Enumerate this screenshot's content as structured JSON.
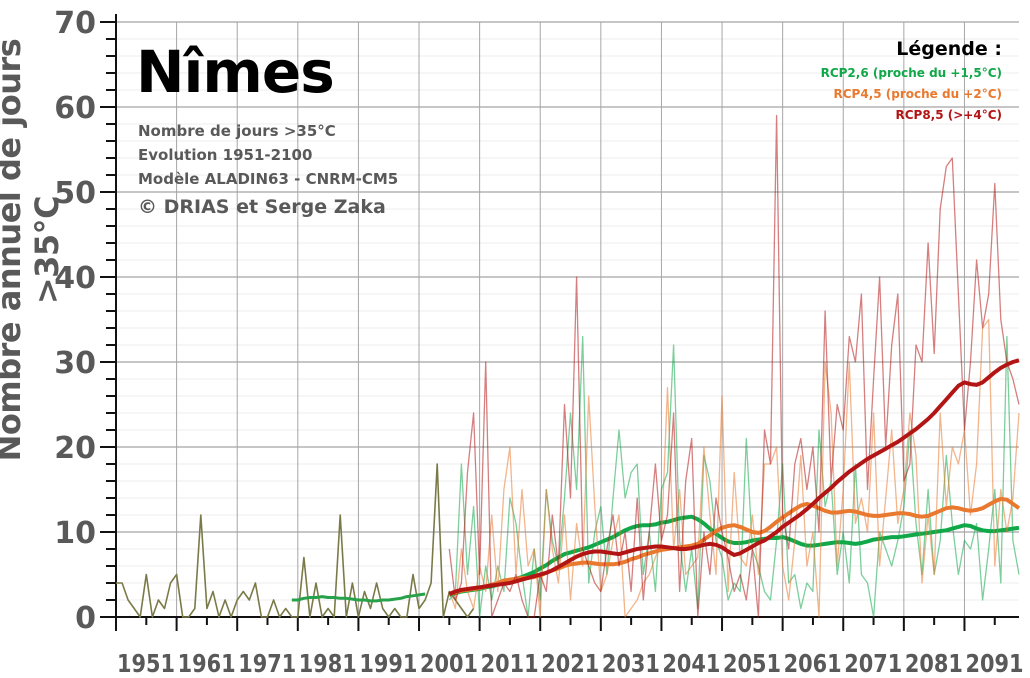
{
  "chart_data": {
    "type": "line",
    "title": "Nîmes",
    "subtitle_lines": [
      "Nombre de jours >35°C",
      "Evolution 1951-2100",
      "Modèle ALADIN63 - CNRM-CM5"
    ],
    "credit": "© DRIAS et Serge Zaka",
    "ylabel": "Nombre annuel de jours >35°C",
    "xlabel": "",
    "x_range": [
      1951,
      2100
    ],
    "ylim": [
      0,
      70
    ],
    "y_ticks": [
      0,
      10,
      20,
      30,
      40,
      50,
      60,
      70
    ],
    "x_ticks": [
      1951,
      1961,
      1971,
      1981,
      1991,
      2001,
      2011,
      2021,
      2031,
      2041,
      2051,
      2061,
      2071,
      2081,
      2091
    ],
    "grid": true,
    "legend_title": "Légende :",
    "legend_position": "top-right",
    "series": [
      {
        "key": "hist",
        "color": "#7a7a48",
        "kind": "annual",
        "x_start": 1951,
        "values": [
          4,
          4,
          2,
          1,
          0,
          5,
          0,
          2,
          1,
          4,
          5,
          0,
          0,
          1,
          12,
          1,
          3,
          0,
          2,
          0,
          2,
          3,
          2,
          4,
          0,
          0,
          2,
          0,
          1,
          0,
          0,
          7,
          0,
          4,
          0,
          1,
          0,
          12,
          0,
          4,
          0,
          3,
          1,
          4,
          1,
          0,
          1,
          0,
          0,
          5,
          1,
          2,
          4,
          18,
          0,
          3,
          2,
          1,
          0,
          1
        ]
      },
      {
        "key": "hist_mean",
        "color": "#27a24a",
        "kind": "mean",
        "x_start": 1980,
        "values": [
          2.0,
          2.0,
          2.2,
          2.3,
          2.3,
          2.4,
          2.3,
          2.3,
          2.2,
          2.2,
          2.1,
          2.0,
          2.0,
          1.9,
          1.9,
          2.0,
          2.0,
          2.1,
          2.2,
          2.4,
          2.5,
          2.6,
          2.7
        ]
      },
      {
        "name": "RCP2,6 (proche du +1,5°C)",
        "color": "#11a84a",
        "kind": "annual",
        "x_start": 2006,
        "values": [
          2,
          3,
          18,
          5,
          13,
          0,
          6,
          2,
          6,
          3,
          14,
          11,
          5,
          0,
          8,
          2,
          15,
          9,
          6,
          14,
          24,
          15,
          33,
          4,
          10,
          13,
          5,
          14,
          22,
          14,
          17,
          18,
          5,
          10,
          3,
          15,
          17,
          32,
          9,
          3,
          8,
          1,
          19,
          16,
          9,
          7,
          2,
          4,
          3,
          21,
          8,
          6,
          3,
          2,
          9,
          18,
          4,
          5,
          1,
          4,
          3,
          22,
          13,
          16,
          5,
          10,
          4,
          18,
          5,
          4,
          0,
          10,
          8,
          6,
          9,
          13,
          22,
          11,
          5,
          15,
          5,
          9,
          19,
          11,
          5,
          9,
          8,
          11,
          2,
          8,
          15,
          4,
          33,
          9,
          5
        ]
      },
      {
        "name": "RCP2,6 (proche du +1,5°C)",
        "color": "#11a84a",
        "kind": "mean",
        "x_start": 2006,
        "values": [
          2.6,
          2.8,
          3.0,
          3.1,
          3.2,
          3.3,
          3.5,
          3.6,
          3.8,
          4.0,
          4.3,
          4.5,
          4.7,
          5.0,
          5.3,
          5.7,
          6.1,
          6.6,
          7.0,
          7.4,
          7.6,
          7.8,
          8.0,
          8.2,
          8.5,
          8.8,
          9.1,
          9.4,
          9.8,
          10.2,
          10.5,
          10.7,
          10.8,
          10.8,
          10.9,
          11.1,
          11.2,
          11.4,
          11.6,
          11.7,
          11.8,
          11.5,
          11.0,
          10.4,
          9.8,
          9.3,
          8.9,
          8.7,
          8.7,
          8.8,
          9.0,
          9.1,
          9.2,
          9.3,
          9.3,
          9.4,
          9.2,
          8.9,
          8.6,
          8.4,
          8.4,
          8.5,
          8.6,
          8.7,
          8.8,
          8.8,
          8.7,
          8.6,
          8.7,
          8.9,
          9.1,
          9.2,
          9.3,
          9.4,
          9.4,
          9.5,
          9.6,
          9.7,
          9.8,
          9.9,
          10.0,
          10.1,
          10.2,
          10.4,
          10.6,
          10.8,
          10.7,
          10.4,
          10.2,
          10.1,
          10.1,
          10.2,
          10.3,
          10.4,
          10.5
        ]
      },
      {
        "name": "RCP4,5 (proche du +2°C)",
        "color": "#e8792e",
        "kind": "annual",
        "x_start": 2006,
        "values": [
          3,
          1,
          8,
          3,
          1,
          6,
          3,
          12,
          3,
          15,
          20,
          5,
          15,
          6,
          8,
          0,
          15,
          8,
          4,
          12,
          2,
          11,
          6,
          26,
          13,
          3,
          5,
          9,
          12,
          0,
          1,
          2,
          4,
          5,
          7,
          9,
          27,
          8,
          15,
          5,
          6,
          7,
          20,
          12,
          5,
          26,
          3,
          17,
          7,
          6,
          12,
          5,
          18,
          18,
          20,
          6,
          2,
          9,
          19,
          6,
          10,
          0,
          30,
          24,
          6,
          15,
          30,
          11,
          14,
          10,
          24,
          6,
          14,
          22,
          11,
          15,
          24,
          19,
          4,
          12,
          5,
          24,
          13,
          20,
          18,
          22,
          12,
          18,
          34,
          35,
          6,
          15,
          10,
          14,
          24
        ]
      },
      {
        "name": "RCP4,5 (proche du +2°C)",
        "color": "#e8792e",
        "kind": "mean",
        "x_start": 2006,
        "values": [
          2.7,
          2.9,
          3.1,
          3.2,
          3.3,
          3.4,
          3.6,
          3.8,
          4.0,
          4.3,
          4.4,
          4.5,
          4.6,
          4.6,
          4.7,
          4.9,
          5.2,
          5.5,
          5.7,
          6.0,
          6.2,
          6.3,
          6.4,
          6.4,
          6.3,
          6.2,
          6.2,
          6.2,
          6.3,
          6.5,
          6.8,
          7.0,
          7.3,
          7.5,
          7.7,
          7.9,
          8.0,
          8.1,
          8.2,
          8.3,
          8.4,
          8.6,
          9.1,
          9.6,
          10.1,
          10.5,
          10.7,
          10.8,
          10.6,
          10.3,
          10.0,
          9.9,
          10.1,
          10.6,
          11.2,
          11.7,
          12.2,
          12.7,
          13.1,
          13.3,
          13.1,
          12.8,
          12.5,
          12.3,
          12.3,
          12.4,
          12.5,
          12.4,
          12.2,
          12.0,
          11.9,
          11.9,
          12.0,
          12.1,
          12.2,
          12.2,
          12.1,
          11.9,
          11.8,
          11.9,
          12.2,
          12.5,
          12.8,
          12.9,
          12.8,
          12.6,
          12.5,
          12.6,
          12.8,
          13.2,
          13.6,
          13.9,
          13.8,
          13.3,
          12.8
        ]
      },
      {
        "name": "RCP8,5 (>+4°C)",
        "color": "#b31515",
        "kind": "annual",
        "x_start": 2006,
        "values": [
          8,
          2,
          4,
          17,
          24,
          5,
          30,
          0,
          2,
          4,
          3,
          5,
          2,
          0,
          0,
          5,
          3,
          12,
          6,
          25,
          14,
          40,
          8,
          6,
          4,
          3,
          8,
          12,
          6,
          10,
          3,
          14,
          2,
          10,
          18,
          9,
          12,
          24,
          3,
          16,
          21,
          0,
          10,
          5,
          14,
          10,
          7,
          3,
          5,
          2,
          8,
          0,
          22,
          18,
          59,
          12,
          8,
          18,
          21,
          15,
          20,
          10,
          36,
          16,
          25,
          22,
          33,
          30,
          38,
          15,
          28,
          40,
          20,
          32,
          38,
          16,
          18,
          32,
          30,
          44,
          31,
          48,
          53,
          54,
          38,
          22,
          30,
          42,
          34,
          38,
          51,
          35,
          30,
          28,
          25
        ]
      },
      {
        "name": "RCP8,5 (>+4°C)",
        "color": "#b31515",
        "kind": "mean",
        "x_start": 2006,
        "values": [
          2.7,
          3.0,
          3.2,
          3.3,
          3.4,
          3.5,
          3.6,
          3.7,
          3.8,
          3.9,
          4.0,
          4.2,
          4.4,
          4.6,
          4.8,
          5.0,
          5.2,
          5.5,
          5.9,
          6.3,
          6.7,
          7.1,
          7.4,
          7.6,
          7.7,
          7.7,
          7.6,
          7.5,
          7.4,
          7.6,
          7.8,
          8.0,
          8.1,
          8.2,
          8.3,
          8.3,
          8.2,
          8.1,
          8.0,
          8.0,
          8.1,
          8.3,
          8.5,
          8.6,
          8.5,
          8.2,
          7.7,
          7.3,
          7.5,
          7.9,
          8.3,
          8.7,
          9.0,
          9.5,
          10.0,
          10.6,
          11.1,
          11.6,
          12.1,
          12.7,
          13.3,
          14.0,
          14.6,
          15.2,
          15.9,
          16.5,
          17.1,
          17.6,
          18.1,
          18.6,
          19.0,
          19.4,
          19.8,
          20.2,
          20.6,
          21.1,
          21.6,
          22.1,
          22.7,
          23.3,
          24.0,
          24.8,
          25.6,
          26.4,
          27.2,
          27.6,
          27.4,
          27.3,
          27.6,
          28.2,
          28.8,
          29.3,
          29.7,
          30.0,
          30.2
        ]
      }
    ]
  }
}
